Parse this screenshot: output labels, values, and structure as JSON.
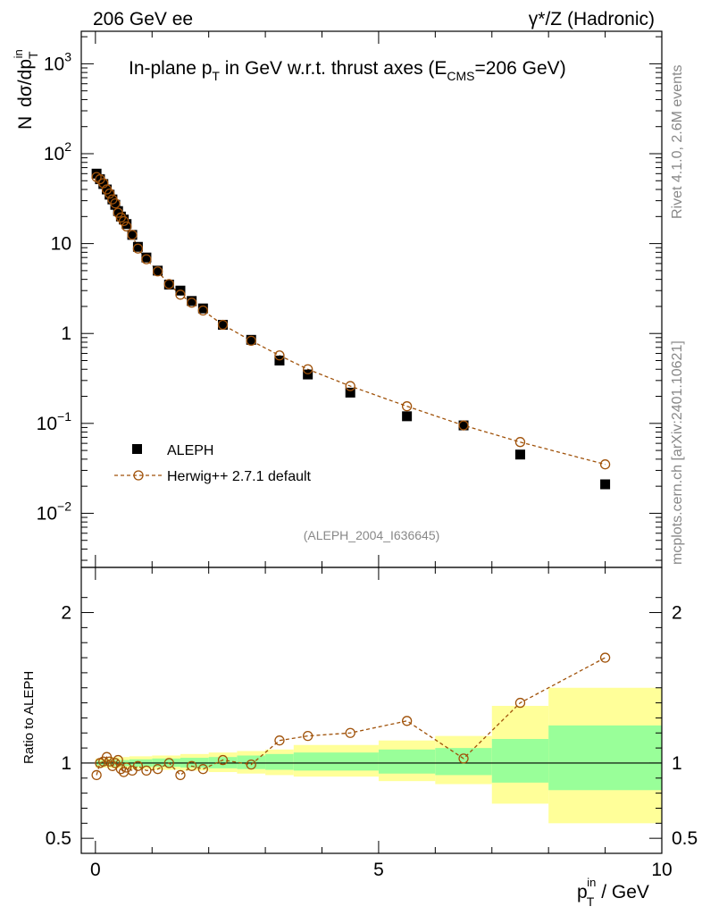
{
  "header": {
    "left": "206 GeV ee",
    "right": "γ*/Z (Hadronic)"
  },
  "side_labels": {
    "rivet": "Rivet 4.1.0,  2.6M events",
    "mcplots": "mcplots.cern.ch [arXiv:2401.10621]"
  },
  "chart_data": {
    "type": "scatter",
    "title_main": "In-plane p",
    "title_sub": "T",
    "title_rest": " in GeV w.r.t. thrust axes (E",
    "title_sub2": "CMS",
    "title_end": "=206 GeV)",
    "analysis_id": "(ALEPH_2004_I636645)",
    "ylabel": {
      "n": "N",
      "dsigma": "dσ/dp",
      "sub": "T",
      "sup": "in"
    },
    "xlabel": {
      "p": "p",
      "sub": "T",
      "sup": "in",
      "unit": " / GeV"
    },
    "ratio_ylabel": "Ratio to ALEPH",
    "xlim": [
      -0.25,
      10.0
    ],
    "ylim_log": [
      0.0025,
      2300
    ],
    "ratio_ylim": [
      0.4,
      2.3
    ],
    "x_ticks": [
      {
        "v": 0,
        "label": "0"
      },
      {
        "v": 5,
        "label": "5"
      },
      {
        "v": 10,
        "label": "10"
      }
    ],
    "y_ticks": [
      {
        "v": 0.01,
        "base": "10",
        "exp": "−2"
      },
      {
        "v": 0.1,
        "base": "10",
        "exp": "−1"
      },
      {
        "v": 1,
        "base": "1",
        "exp": ""
      },
      {
        "v": 10,
        "base": "10",
        "exp": ""
      },
      {
        "v": 100,
        "base": "10",
        "exp": "2"
      },
      {
        "v": 1000,
        "base": "10",
        "exp": "3"
      }
    ],
    "ratio_ticks": [
      {
        "v": 0.5,
        "label": "0.5"
      },
      {
        "v": 1,
        "label": "1"
      },
      {
        "v": 2,
        "label": "2"
      }
    ],
    "series": [
      {
        "name": "ALEPH",
        "style": "square",
        "color": "#000000",
        "x": [
          0.02,
          0.08,
          0.14,
          0.2,
          0.25,
          0.3,
          0.35,
          0.4,
          0.45,
          0.5,
          0.55,
          0.65,
          0.75,
          0.9,
          1.1,
          1.3,
          1.5,
          1.7,
          1.9,
          2.25,
          2.75,
          3.25,
          3.75,
          4.5,
          5.5,
          6.5,
          7.5,
          9.0
        ],
        "values": [
          60,
          52,
          46,
          40,
          35,
          31,
          27,
          23,
          20,
          18.5,
          16.5,
          12.5,
          9.2,
          7.0,
          5.0,
          3.5,
          3.0,
          2.3,
          1.9,
          1.25,
          0.85,
          0.5,
          0.35,
          0.22,
          0.12,
          0.095,
          0.045,
          0.021
        ]
      },
      {
        "name": "Herwig++ 2.7.1 default",
        "style": "circle",
        "color": "#a0520a",
        "x": [
          0.02,
          0.08,
          0.14,
          0.2,
          0.25,
          0.3,
          0.35,
          0.4,
          0.45,
          0.5,
          0.55,
          0.65,
          0.75,
          0.9,
          1.1,
          1.3,
          1.5,
          1.7,
          1.9,
          2.25,
          2.75,
          3.25,
          3.75,
          4.5,
          5.5,
          6.5,
          7.5,
          9.0
        ],
        "values": [
          55,
          52,
          47,
          40,
          36,
          31,
          28,
          22,
          19.5,
          17.8,
          15.5,
          12.5,
          8.8,
          6.7,
          4.9,
          3.55,
          2.7,
          2.2,
          1.8,
          1.25,
          0.83,
          0.57,
          0.4,
          0.26,
          0.155,
          0.095,
          0.062,
          0.035
        ]
      }
    ],
    "ratio_points": {
      "x": [
        0.02,
        0.08,
        0.14,
        0.2,
        0.25,
        0.3,
        0.35,
        0.4,
        0.45,
        0.5,
        0.55,
        0.65,
        0.75,
        0.9,
        1.1,
        1.3,
        1.5,
        1.7,
        1.9,
        2.25,
        2.75,
        3.25,
        3.75,
        4.5,
        5.5,
        6.5,
        7.5,
        9.0
      ],
      "values": [
        0.92,
        1.0,
        1.01,
        1.04,
        1.01,
        0.98,
        1.0,
        1.02,
        0.96,
        0.94,
        0.97,
        0.95,
        0.98,
        0.95,
        0.96,
        1.0,
        0.92,
        0.98,
        0.96,
        1.02,
        0.99,
        1.15,
        1.18,
        1.2,
        1.28,
        1.03,
        1.4,
        1.7
      ]
    },
    "bands": [
      {
        "x0": 0.0,
        "x1": 0.25,
        "y_lo": 0.97,
        "y_hi": 1.03,
        "g_lo": 0.985,
        "g_hi": 1.015
      },
      {
        "x0": 0.25,
        "x1": 0.6,
        "y_lo": 0.965,
        "y_hi": 1.04,
        "g_lo": 0.98,
        "g_hi": 1.02
      },
      {
        "x0": 0.6,
        "x1": 1.0,
        "y_lo": 0.96,
        "y_hi": 1.045,
        "g_lo": 0.975,
        "g_hi": 1.025
      },
      {
        "x0": 1.0,
        "x1": 1.5,
        "y_lo": 0.955,
        "y_hi": 1.05,
        "g_lo": 0.975,
        "g_hi": 1.03
      },
      {
        "x0": 1.5,
        "x1": 2.0,
        "y_lo": 0.95,
        "y_hi": 1.06,
        "g_lo": 0.97,
        "g_hi": 1.035
      },
      {
        "x0": 2.0,
        "x1": 2.5,
        "y_lo": 0.94,
        "y_hi": 1.07,
        "g_lo": 0.965,
        "g_hi": 1.04
      },
      {
        "x0": 2.5,
        "x1": 3.0,
        "y_lo": 0.93,
        "y_hi": 1.08,
        "g_lo": 0.96,
        "g_hi": 1.05
      },
      {
        "x0": 3.0,
        "x1": 3.5,
        "y_lo": 0.92,
        "y_hi": 1.09,
        "g_lo": 0.955,
        "g_hi": 1.06
      },
      {
        "x0": 3.5,
        "x1": 5.0,
        "y_lo": 0.91,
        "y_hi": 1.12,
        "g_lo": 0.95,
        "g_hi": 1.07
      },
      {
        "x0": 5.0,
        "x1": 6.0,
        "y_lo": 0.88,
        "y_hi": 1.15,
        "g_lo": 0.93,
        "g_hi": 1.09
      },
      {
        "x0": 6.0,
        "x1": 7.0,
        "y_lo": 0.86,
        "y_hi": 1.18,
        "g_lo": 0.92,
        "g_hi": 1.1
      },
      {
        "x0": 7.0,
        "x1": 8.0,
        "y_lo": 0.73,
        "y_hi": 1.38,
        "g_lo": 0.87,
        "g_hi": 1.16
      },
      {
        "x0": 8.0,
        "x1": 10.0,
        "y_lo": 0.6,
        "y_hi": 1.5,
        "g_lo": 0.82,
        "g_hi": 1.25
      }
    ],
    "band_colors": {
      "yellow": "#ffff99",
      "green": "#99ff99"
    },
    "line_color": "#a0520a"
  }
}
